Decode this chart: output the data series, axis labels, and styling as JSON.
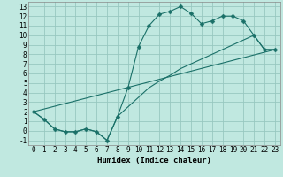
{
  "xlabel": "Humidex (Indice chaleur)",
  "bg_color": "#c0e8e0",
  "grid_color": "#98c8c0",
  "line_color": "#1a7068",
  "xlim": [
    -0.5,
    23.5
  ],
  "ylim": [
    -1.5,
    13.5
  ],
  "xticks": [
    0,
    1,
    2,
    3,
    4,
    5,
    6,
    7,
    8,
    9,
    10,
    11,
    12,
    13,
    14,
    15,
    16,
    17,
    18,
    19,
    20,
    21,
    22,
    23
  ],
  "yticks": [
    -1,
    0,
    1,
    2,
    3,
    4,
    5,
    6,
    7,
    8,
    9,
    10,
    11,
    12,
    13
  ],
  "line1_x": [
    0,
    1,
    2,
    3,
    4,
    5,
    6,
    7,
    8,
    9,
    10,
    11,
    12,
    13,
    14,
    15,
    16,
    17,
    18,
    19,
    20,
    21,
    22,
    23
  ],
  "line1_y": [
    2.0,
    1.2,
    0.2,
    -0.1,
    -0.1,
    0.2,
    -0.1,
    -1.0,
    1.5,
    4.5,
    8.8,
    11.0,
    12.2,
    12.5,
    13.0,
    12.3,
    11.2,
    11.5,
    12.0,
    12.0,
    11.5,
    10.0,
    8.5,
    8.5
  ],
  "line2_x": [
    0,
    23
  ],
  "line2_y": [
    2.0,
    8.5
  ],
  "line3_x": [
    0,
    1,
    2,
    3,
    4,
    5,
    6,
    7,
    8,
    9,
    10,
    11,
    12,
    13,
    14,
    15,
    16,
    17,
    18,
    19,
    20,
    21,
    22,
    23
  ],
  "line3_y": [
    2.0,
    1.2,
    0.2,
    -0.1,
    -0.1,
    0.2,
    -0.1,
    -1.0,
    1.5,
    2.5,
    3.5,
    4.5,
    5.2,
    5.8,
    6.5,
    7.0,
    7.5,
    8.0,
    8.5,
    9.0,
    9.5,
    10.0,
    8.5,
    8.5
  ],
  "marker": "D",
  "marker_size": 2.5,
  "linewidth": 0.8,
  "tick_fontsize": 5.5,
  "xlabel_fontsize": 6.5
}
